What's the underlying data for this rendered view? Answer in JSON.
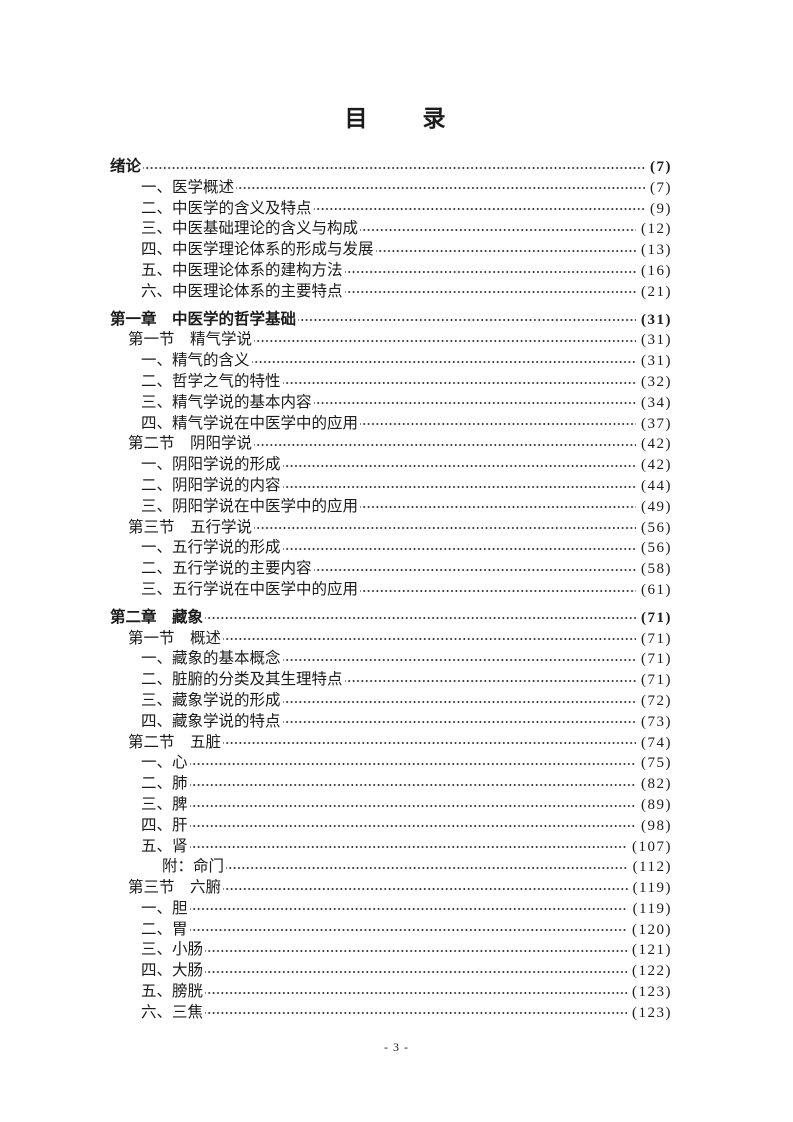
{
  "document": {
    "title": "目　　录",
    "footer": "- 3 -"
  },
  "toc": {
    "entries": [
      {
        "label": "绪论",
        "page": "(7)",
        "level": 0,
        "bold": true
      },
      {
        "label": "一、医学概述",
        "page": "(7)",
        "level": 2,
        "bold": false
      },
      {
        "label": "二、中医学的含义及特点",
        "page": "(9)",
        "level": 2,
        "bold": false
      },
      {
        "label": "三、中医基础理论的含义与构成",
        "page": "(12)",
        "level": 2,
        "bold": false
      },
      {
        "label": "四、中医学理论体系的形成与发展",
        "page": "(13)",
        "level": 2,
        "bold": false
      },
      {
        "label": "五、中医理论体系的建构方法",
        "page": "(16)",
        "level": 2,
        "bold": false
      },
      {
        "label": "六、中医理论体系的主要特点",
        "page": "(21)",
        "level": 2,
        "bold": false
      },
      {
        "label": "第一章　中医学的哲学基础",
        "page": "(31)",
        "level": 0,
        "bold": true
      },
      {
        "label": "第一节　精气学说",
        "page": "(31)",
        "level": 1,
        "bold": false
      },
      {
        "label": "一、精气的含义",
        "page": "(31)",
        "level": 2,
        "bold": false
      },
      {
        "label": "二、哲学之气的特性",
        "page": "(32)",
        "level": 2,
        "bold": false
      },
      {
        "label": "三、精气学说的基本内容",
        "page": "(34)",
        "level": 2,
        "bold": false
      },
      {
        "label": "四、精气学说在中医学中的应用",
        "page": "(37)",
        "level": 2,
        "bold": false
      },
      {
        "label": "第二节　阴阳学说",
        "page": "(42)",
        "level": 1,
        "bold": false
      },
      {
        "label": "一、阴阳学说的形成",
        "page": "(42)",
        "level": 2,
        "bold": false
      },
      {
        "label": "二、阴阳学说的内容",
        "page": "(44)",
        "level": 2,
        "bold": false
      },
      {
        "label": "三、阴阳学说在中医学中的应用",
        "page": "(49)",
        "level": 2,
        "bold": false
      },
      {
        "label": "第三节　五行学说",
        "page": "(56)",
        "level": 1,
        "bold": false
      },
      {
        "label": "一、五行学说的形成",
        "page": "(56)",
        "level": 2,
        "bold": false
      },
      {
        "label": "二、五行学说的主要内容",
        "page": "(58)",
        "level": 2,
        "bold": false
      },
      {
        "label": "三、五行学说在中医学中的应用",
        "page": "(61)",
        "level": 2,
        "bold": false
      },
      {
        "label": "第二章　藏象",
        "page": "(71)",
        "level": 0,
        "bold": true
      },
      {
        "label": "第一节　概述",
        "page": "(71)",
        "level": 1,
        "bold": false
      },
      {
        "label": "一、藏象的基本概念",
        "page": "(71)",
        "level": 2,
        "bold": false
      },
      {
        "label": "二、脏腑的分类及其生理特点",
        "page": "(71)",
        "level": 2,
        "bold": false
      },
      {
        "label": "三、藏象学说的形成",
        "page": "(72)",
        "level": 2,
        "bold": false
      },
      {
        "label": "四、藏象学说的特点",
        "page": "(73)",
        "level": 2,
        "bold": false
      },
      {
        "label": "第二节　五脏",
        "page": "(74)",
        "level": 1,
        "bold": false
      },
      {
        "label": "一、心",
        "page": "(75)",
        "level": 2,
        "bold": false
      },
      {
        "label": "二、肺",
        "page": "(82)",
        "level": 2,
        "bold": false
      },
      {
        "label": "三、脾",
        "page": "(89)",
        "level": 2,
        "bold": false
      },
      {
        "label": "四、肝",
        "page": "(98)",
        "level": 2,
        "bold": false
      },
      {
        "label": "五、肾",
        "page": "(107)",
        "level": 2,
        "bold": false
      },
      {
        "label": "附：命门",
        "page": "(112)",
        "level": 3,
        "bold": false
      },
      {
        "label": "第三节　六腑",
        "page": "(119)",
        "level": 1,
        "bold": false
      },
      {
        "label": "一、胆",
        "page": "(119)",
        "level": 2,
        "bold": false
      },
      {
        "label": "二、胃",
        "page": "(120)",
        "level": 2,
        "bold": false
      },
      {
        "label": "三、小肠",
        "page": "(121)",
        "level": 2,
        "bold": false
      },
      {
        "label": "四、大肠",
        "page": "(122)",
        "level": 2,
        "bold": false
      },
      {
        "label": "五、膀胱",
        "page": "(123)",
        "level": 2,
        "bold": false
      },
      {
        "label": "六、三焦",
        "page": "(123)",
        "level": 2,
        "bold": false
      }
    ]
  }
}
